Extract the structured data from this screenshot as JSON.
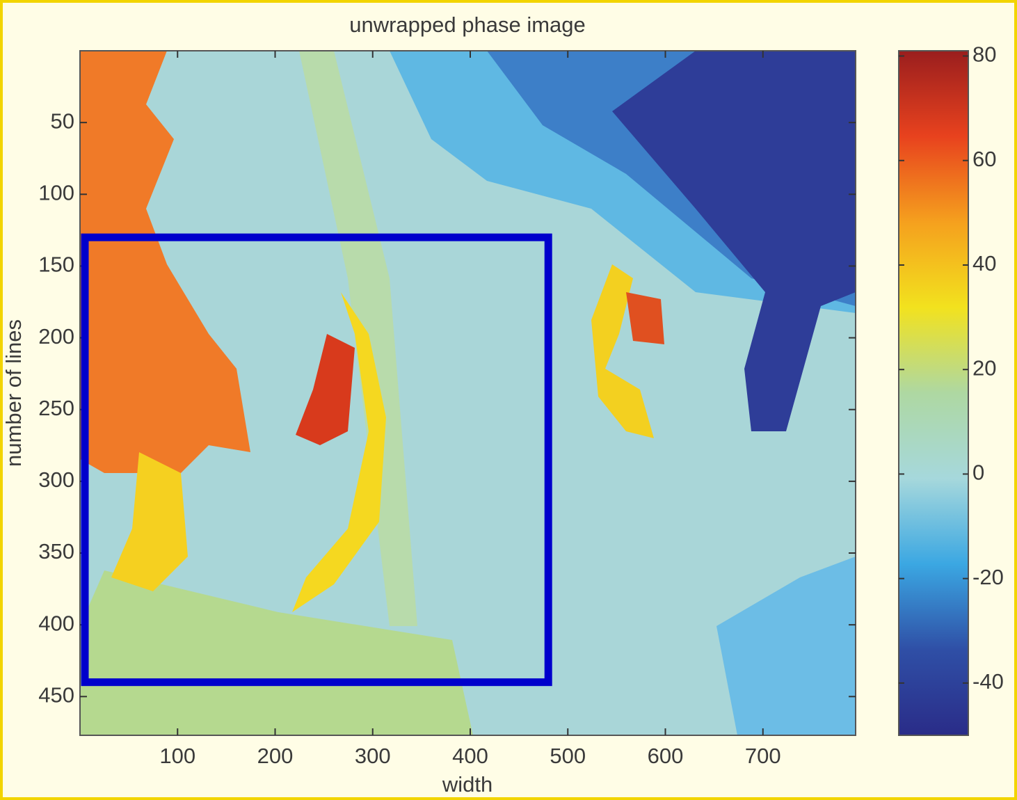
{
  "chart_data": {
    "type": "heatmap",
    "title": "unwrapped phase image",
    "x_label": "width",
    "y_label": "number of lines",
    "xlim": [
      0,
      795
    ],
    "xticks": [
      100,
      200,
      300,
      400,
      500,
      600,
      700
    ],
    "ylim": [
      0,
      477
    ],
    "yticks": [
      50,
      100,
      150,
      200,
      250,
      300,
      350,
      400,
      450
    ],
    "y_reversed": true,
    "colorbar": {
      "clim": [
        -50,
        81
      ],
      "ticks": [
        -40,
        -20,
        0,
        20,
        40,
        60,
        80
      ],
      "colormap": [
        "#2a2c88",
        "#2f4fa6",
        "#3ba7e2",
        "#a6d8dc",
        "#aed8a2",
        "#f2e21e",
        "#f5a01e",
        "#e8421e",
        "#9a1e1e"
      ]
    },
    "highlight_box": {
      "x": [
        5,
        480
      ],
      "y": [
        130,
        440
      ],
      "color": "#0000cc"
    }
  }
}
